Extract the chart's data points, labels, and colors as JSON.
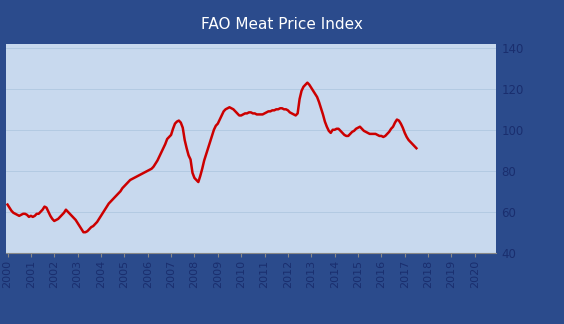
{
  "title": "FAO Meat Price Index",
  "title_bg_color": "#2B4B8C",
  "title_text_color": "#FFFFFF",
  "plot_bg_color": "#C8D9EE",
  "fig_bg_color": "#2B4B8C",
  "line_color": "#CC0000",
  "line_width": 1.8,
  "ylim": [
    40,
    142
  ],
  "yticks": [
    40,
    60,
    80,
    100,
    120,
    140
  ],
  "tick_color": "#1A2E6E",
  "grid_color": "#B0C8E0",
  "years": [
    2000,
    2001,
    2002,
    2003,
    2004,
    2005,
    2006,
    2007,
    2008,
    2009,
    2010,
    2011,
    2012,
    2013,
    2014,
    2015,
    2016,
    2017,
    2018,
    2019,
    2020
  ],
  "values_monthly": [
    63.5,
    62.0,
    60.5,
    59.5,
    59.0,
    58.5,
    58.0,
    58.5,
    59.0,
    59.0,
    58.5,
    57.5,
    58.0,
    57.5,
    58.0,
    59.0,
    59.0,
    60.0,
    61.0,
    62.5,
    62.0,
    60.0,
    58.0,
    56.5,
    55.5,
    56.0,
    56.5,
    57.5,
    58.5,
    59.5,
    61.0,
    60.0,
    59.0,
    58.0,
    57.0,
    56.0,
    54.5,
    53.0,
    51.5,
    50.0,
    50.0,
    50.5,
    51.5,
    52.5,
    53.0,
    54.0,
    55.0,
    56.5,
    58.0,
    59.5,
    61.0,
    62.5,
    64.0,
    65.0,
    66.0,
    67.0,
    68.0,
    69.0,
    70.0,
    71.5,
    72.5,
    73.5,
    74.5,
    75.5,
    76.0,
    76.5,
    77.0,
    77.5,
    78.0,
    78.5,
    79.0,
    79.5,
    80.0,
    80.5,
    81.0,
    82.0,
    83.5,
    85.0,
    87.0,
    89.0,
    91.0,
    93.0,
    95.5,
    96.5,
    97.5,
    100.5,
    103.0,
    104.0,
    104.5,
    103.5,
    101.0,
    95.0,
    91.0,
    87.5,
    85.5,
    79.0,
    76.5,
    75.5,
    74.5,
    77.5,
    81.0,
    85.0,
    88.0,
    91.0,
    94.0,
    97.0,
    100.0,
    102.0,
    103.0,
    105.0,
    107.0,
    109.0,
    110.0,
    110.5,
    111.0,
    110.5,
    110.0,
    109.0,
    108.0,
    107.0,
    107.0,
    107.5,
    108.0,
    108.0,
    108.5,
    108.5,
    108.0,
    108.0,
    107.5,
    107.5,
    107.5,
    107.5,
    108.0,
    108.5,
    109.0,
    109.0,
    109.5,
    109.5,
    110.0,
    110.0,
    110.5,
    110.5,
    110.0,
    110.0,
    109.5,
    108.5,
    108.0,
    107.5,
    107.0,
    108.0,
    115.0,
    119.0,
    121.0,
    122.0,
    123.0,
    122.0,
    120.5,
    119.0,
    117.5,
    116.0,
    113.5,
    110.5,
    107.5,
    104.0,
    101.5,
    99.5,
    98.5,
    100.0,
    100.0,
    100.5,
    100.5,
    99.5,
    98.5,
    97.5,
    97.0,
    97.0,
    98.0,
    99.0,
    99.5,
    100.5,
    101.0,
    101.5,
    100.5,
    99.5,
    99.0,
    98.5,
    98.0,
    98.0,
    98.0,
    98.0,
    97.5,
    97.0,
    97.0,
    96.5,
    97.0,
    98.0,
    99.0,
    100.5,
    101.5,
    103.5,
    105.0,
    104.5,
    103.0,
    101.0,
    98.5,
    96.5,
    95.0,
    94.0,
    93.0,
    92.0,
    91.0
  ]
}
